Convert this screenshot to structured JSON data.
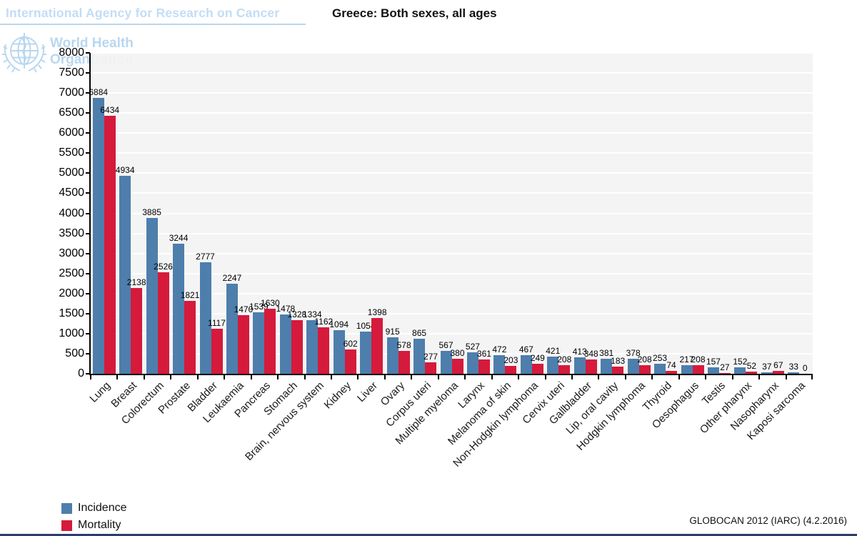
{
  "header": {
    "iarc_title": "International Agency for Research on Cancer",
    "who_line1": "World Health",
    "who_line2": "Organization"
  },
  "footer": {
    "attribution": "GLOBOCAN 2012 (IARC) (4.2.2016)"
  },
  "colors": {
    "incidence": "#4d7eac",
    "mortality": "#d51a3c",
    "plot_background": "#f3f3f3",
    "gridline": "#ffffff",
    "axis": "#000000",
    "logo_blue": "#b9d7ef",
    "page_bottom_border": "#2b3c6b"
  },
  "chart_data": {
    "type": "bar",
    "title": "Greece: Both sexes, all ages",
    "categories": [
      "Lung",
      "Breast",
      "Colorectum",
      "Prostate",
      "Bladder",
      "Leukaemia",
      "Pancreas",
      "Stomach",
      "Brain, nervous system",
      "Kidney",
      "Liver",
      "Ovary",
      "Corpus uteri",
      "Multiple myeloma",
      "Larynx",
      "Melanoma of skin",
      "Non-Hodgkin lymphoma",
      "Cervix uteri",
      "Gallbladder",
      "Lip, oral cavity",
      "Hodgkin lymphoma",
      "Thyroid",
      "Oesophagus",
      "Testis",
      "Other pharynx",
      "Nasopharynx",
      "Kaposi sarcoma"
    ],
    "series": [
      {
        "name": "Incidence",
        "color": "#4d7eac",
        "values": [
          6884,
          4934,
          3885,
          3244,
          2777,
          2247,
          1539,
          1478,
          1334,
          1094,
          1054,
          915,
          865,
          567,
          527,
          472,
          467,
          421,
          413,
          381,
          378,
          253,
          217,
          157,
          152,
          37,
          33
        ]
      },
      {
        "name": "Mortality",
        "color": "#d51a3c",
        "values": [
          6434,
          2138,
          2526,
          1821,
          1117,
          1470,
          1630,
          1328,
          1162,
          602,
          1398,
          578,
          277,
          380,
          361,
          203,
          249,
          208,
          348,
          183,
          208,
          74,
          208,
          27,
          52,
          67,
          0
        ]
      }
    ],
    "xlabel": "",
    "ylabel": "",
    "ylim": [
      0,
      8000
    ],
    "ytick_step": 500,
    "grid": "horizontal white lines on light gray panel",
    "legend_position": "bottom-left",
    "bar_value_labels": true
  }
}
